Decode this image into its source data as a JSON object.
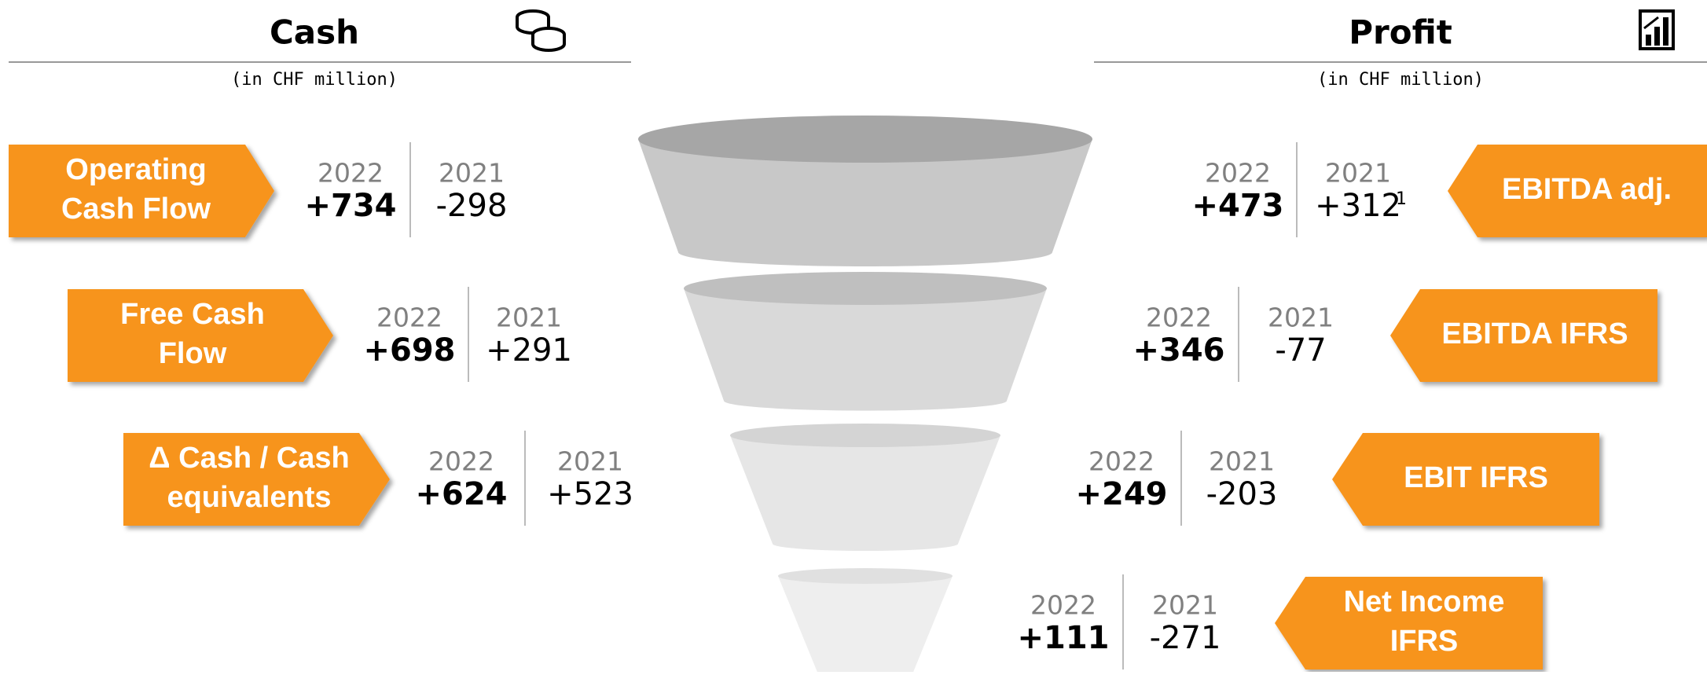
{
  "cash": {
    "title": "Cash",
    "subtitle": "(in CHF million)",
    "items": [
      {
        "label": [
          "Operating",
          "Cash Flow"
        ],
        "years": [
          "2022",
          "2021"
        ],
        "values": [
          "+734",
          "-298"
        ]
      },
      {
        "label": [
          "Free Cash",
          "Flow"
        ],
        "years": [
          "2022",
          "2021"
        ],
        "values": [
          "+698",
          "+291"
        ]
      },
      {
        "label": [
          "Δ Cash / Cash",
          "equivalents"
        ],
        "years": [
          "2022",
          "2021"
        ],
        "values": [
          "+624",
          "+523"
        ]
      }
    ]
  },
  "profit": {
    "title": "Profit",
    "subtitle": "(in CHF million)",
    "items": [
      {
        "label": [
          "EBITDA adj."
        ],
        "years": [
          "2022",
          "2021"
        ],
        "values": [
          "+473",
          "+312"
        ],
        "footnote": "1"
      },
      {
        "label": [
          "EBITDA IFRS"
        ],
        "years": [
          "2022",
          "2021"
        ],
        "values": [
          "+346",
          "-77"
        ]
      },
      {
        "label": [
          "EBIT IFRS"
        ],
        "years": [
          "2022",
          "2021"
        ],
        "values": [
          "+249",
          "-203"
        ]
      },
      {
        "label": [
          "Net Income",
          "IFRS"
        ],
        "years": [
          "2022",
          "2021"
        ],
        "values": [
          "+111",
          "-271"
        ]
      }
    ]
  }
}
